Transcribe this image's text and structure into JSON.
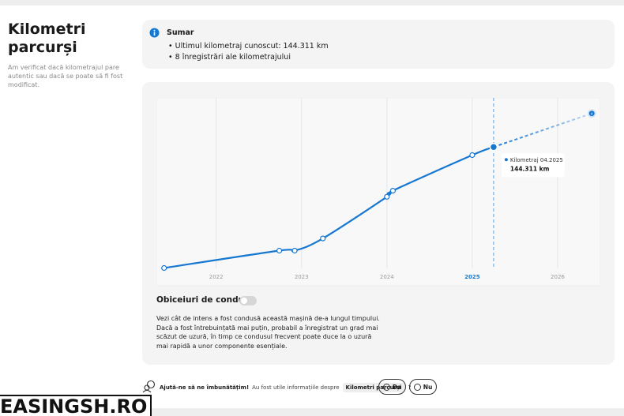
{
  "sidebar": {
    "title": "Kilometri parcurși",
    "description": "Am verificat dacă kilometrajul pare autentic sau dacă se poate să fi fost modificat."
  },
  "summary": {
    "title": "Sumar",
    "items": [
      "Ultimul kilometraj cunoscut: 144.311 km",
      "8 înregistrări ale kilometrajului"
    ]
  },
  "chart_data": {
    "type": "line",
    "color": "#1778d2",
    "x": [
      2021.39,
      2022.74,
      2022.92,
      2023.25,
      2024.0,
      2024.07,
      2025.0,
      2025.25
    ],
    "values": [
      5000,
      25000,
      25000,
      39000,
      87000,
      94000,
      135000,
      144311
    ],
    "xlim": [
      2021.3,
      2026.5
    ],
    "ylim": [
      0,
      200000
    ],
    "xticks": [
      2022,
      2023,
      2024,
      2025,
      2026
    ],
    "highlight_tick": 2025,
    "grid": true,
    "tooltip": {
      "label": "Kilometraj 04.2025",
      "value": "144.311 km"
    },
    "projection": {
      "x": 2026.4,
      "y": 183000
    }
  },
  "driving_habits": {
    "title": "Obiceiuri de condus",
    "text": "Vezi cât de intens a fost condusă această mașină de-a lungul timpului. Dacă a fost întrebuințată mai puțin, probabil a înregistrat un grad mai scăzut de uzură, în timp ce condusul frecvent poate duce la o uzură mai rapidă a unor componente esențiale."
  },
  "feedback": {
    "title": "Ajută-ne să ne îmbunătățim!",
    "question": "Au fost utile informațiile despre",
    "topic": "Kilometri parcurși",
    "question_end": "?",
    "yes": "Da",
    "no": "Nu"
  },
  "watermark": "EASINGSH.RO"
}
